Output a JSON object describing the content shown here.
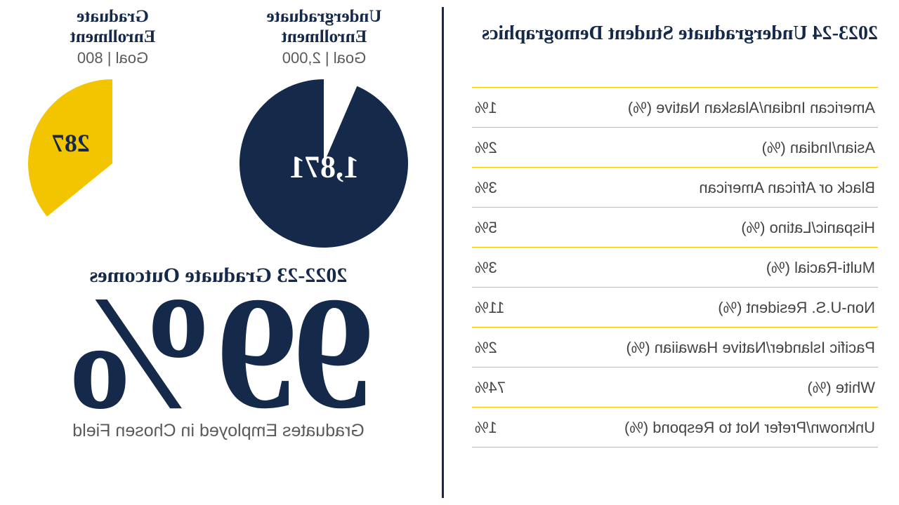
{
  "colors": {
    "navy": "#15294b",
    "yellow": "#f3c400",
    "white": "#ffffff",
    "gray_text": "#5a5a5a",
    "table_text": "#444444"
  },
  "undergrad": {
    "title_line1": "Undergraduate",
    "title_line2": "Enrollment",
    "goal_label": "Goal | 2,000",
    "value": 1871,
    "value_label": "1,871",
    "goal": 2000,
    "slice_color": "#15294b",
    "label_color": "#ffffff"
  },
  "grad": {
    "title_line1": "Graduate",
    "title_line2": "Enrollment",
    "goal_label": "Goal | 800",
    "value": 287,
    "value_label": "287",
    "goal": 800,
    "slice_color": "#f3c400",
    "label_color": "#15294b"
  },
  "outcomes": {
    "title": "2022-23 Graduate Outcomes",
    "percent": "99%",
    "subtitle": "Graduates Employed in Chosen Field"
  },
  "demographics": {
    "title": "2023-24 Undergraduate Student Demographics",
    "rows": [
      {
        "label": "American Indian/Alaskan Native (%)",
        "value": "1%"
      },
      {
        "label": "Asian/Indian (%)",
        "value": "2%"
      },
      {
        "label": "Black or African American",
        "value": "3%"
      },
      {
        "label": "Hispanic/Latino (%)",
        "value": "5%"
      },
      {
        "label": "Multi-Racial (%)",
        "value": "3%"
      },
      {
        "label": "Non-U.S. Resident (%)",
        "value": "11%"
      },
      {
        "label": "Pacific Islander/Native Hawaiian (%)",
        "value": "2%"
      },
      {
        "label": "White (%)",
        "value": "74%"
      },
      {
        "label": "Unknown/Prefer Not to Respond (%)",
        "value": "1%"
      }
    ]
  }
}
